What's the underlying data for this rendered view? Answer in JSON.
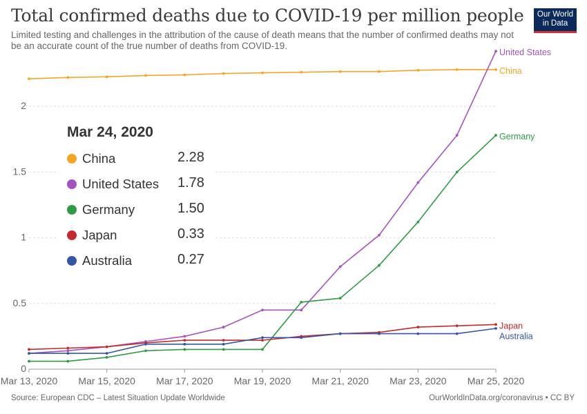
{
  "header": {
    "title": "Total confirmed deaths due to COVID-19 per million people",
    "subtitle": "Limited testing and challenges in the attribution of the cause of death means that the number of confirmed deaths may not be an accurate count of the true number of deaths from COVID-19."
  },
  "logo": {
    "line1": "Our World",
    "line2": "in Data"
  },
  "footer": {
    "source": "Source: European CDC – Latest Situation Update Worldwide",
    "credit": "OurWorldInData.org/coronavirus • CC BY"
  },
  "tooltip": {
    "date": "Mar 24, 2020",
    "rows": [
      {
        "name": "China",
        "value": "2.28",
        "color": "#f4a623"
      },
      {
        "name": "United States",
        "value": "1.78",
        "color": "#a551bf"
      },
      {
        "name": "Germany",
        "value": "1.50",
        "color": "#2e9b46"
      },
      {
        "name": "Japan",
        "value": "0.33",
        "color": "#c6292b"
      },
      {
        "name": "Australia",
        "value": "0.27",
        "color": "#3556a7"
      }
    ]
  },
  "chart_data": {
    "type": "line",
    "x": [
      "2020-03-13",
      "2020-03-14",
      "2020-03-15",
      "2020-03-16",
      "2020-03-17",
      "2020-03-18",
      "2020-03-19",
      "2020-03-20",
      "2020-03-21",
      "2020-03-22",
      "2020-03-23",
      "2020-03-24",
      "2020-03-25"
    ],
    "x_tick_labels": [
      "Mar 13, 2020",
      "Mar 15, 2020",
      "Mar 17, 2020",
      "Mar 19, 2020",
      "Mar 21, 2020",
      "Mar 23, 2020",
      "Mar 25, 2020"
    ],
    "y_ticks": [
      0,
      0.5,
      1,
      1.5,
      2
    ],
    "y_tick_labels": [
      "0",
      "0.5",
      "1",
      "1.5",
      "2"
    ],
    "ylim": [
      0,
      2.4
    ],
    "grid": "horizontal dashed",
    "series": [
      {
        "name": "China",
        "color": "#f4a623",
        "values": [
          2.21,
          2.22,
          2.225,
          2.235,
          2.24,
          2.25,
          2.255,
          2.26,
          2.265,
          2.265,
          2.275,
          2.28,
          2.28
        ]
      },
      {
        "name": "United States",
        "color": "#a551bf",
        "values": [
          0.12,
          0.14,
          0.17,
          0.21,
          0.25,
          0.32,
          0.45,
          0.45,
          0.78,
          1.02,
          1.42,
          1.78,
          2.42
        ]
      },
      {
        "name": "Germany",
        "color": "#2e9b46",
        "values": [
          0.06,
          0.06,
          0.09,
          0.14,
          0.15,
          0.15,
          0.15,
          0.51,
          0.54,
          0.79,
          1.12,
          1.5,
          1.78
        ]
      },
      {
        "name": "Japan",
        "color": "#c6292b",
        "values": [
          0.15,
          0.16,
          0.17,
          0.2,
          0.22,
          0.22,
          0.22,
          0.25,
          0.27,
          0.28,
          0.32,
          0.33,
          0.34
        ]
      },
      {
        "name": "Australia",
        "color": "#3556a7",
        "values": [
          0.12,
          0.12,
          0.12,
          0.19,
          0.19,
          0.19,
          0.24,
          0.24,
          0.27,
          0.27,
          0.27,
          0.27,
          0.31
        ]
      }
    ]
  }
}
